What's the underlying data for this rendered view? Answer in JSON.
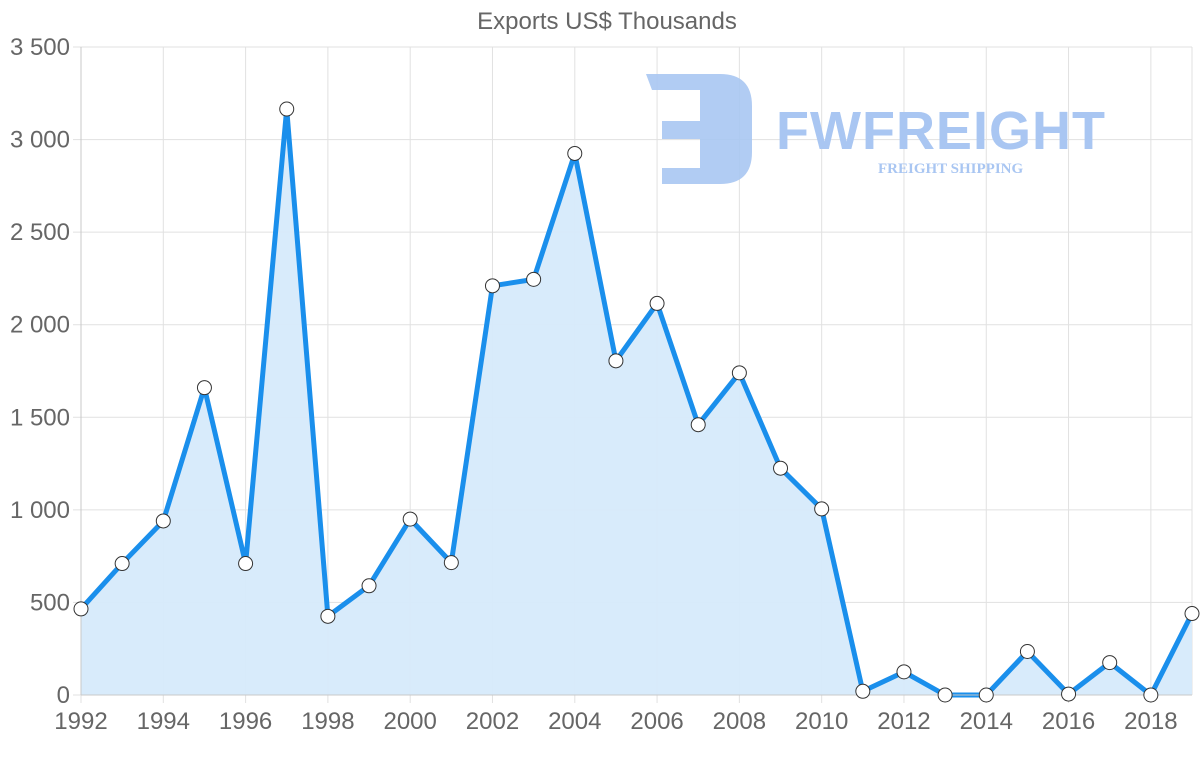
{
  "chart_data": {
    "type": "line",
    "title": "Exports US$ Thousands",
    "xlabel": "",
    "ylabel": "",
    "x": [
      1992,
      1993,
      1994,
      1995,
      1996,
      1997,
      1998,
      1999,
      2000,
      2001,
      2002,
      2003,
      2004,
      2005,
      2006,
      2007,
      2008,
      2009,
      2010,
      2011,
      2012,
      2013,
      2014,
      2015,
      2016,
      2017,
      2018,
      2019
    ],
    "series": [
      {
        "name": "Exports",
        "values": [
          465,
          710,
          940,
          1660,
          710,
          3165,
          425,
          590,
          950,
          715,
          2210,
          2245,
          2925,
          1805,
          2115,
          1460,
          1740,
          1225,
          1005,
          20,
          125,
          0,
          0,
          235,
          5,
          175,
          0,
          440
        ]
      }
    ],
    "ylim": [
      0,
      3500
    ],
    "yticks": [
      0,
      500,
      1000,
      1500,
      2000,
      2500,
      3000,
      3500
    ],
    "ytick_labels": [
      "0",
      "500",
      "1 000",
      "1 500",
      "2 000",
      "2 500",
      "3 000",
      "3 500"
    ],
    "xticks": [
      1992,
      1994,
      1996,
      1998,
      2000,
      2002,
      2004,
      2006,
      2008,
      2010,
      2012,
      2014,
      2016,
      2018
    ],
    "xtick_labels": [
      "1992",
      "1994",
      "1996",
      "1998",
      "2000",
      "2002",
      "2004",
      "2006",
      "2008",
      "2010",
      "2012",
      "2014",
      "2016",
      "2018"
    ],
    "grid": true,
    "legend": "none",
    "fill": true
  },
  "colors": {
    "line": "#1a8fec",
    "fill": "#d6eafb",
    "marker_fill": "#ffffff",
    "marker_stroke": "#333333",
    "watermark": "#a9c6f2"
  },
  "watermark": {
    "brand": "FWFREIGHT",
    "tagline": "FREIGHT SHIPPING"
  }
}
